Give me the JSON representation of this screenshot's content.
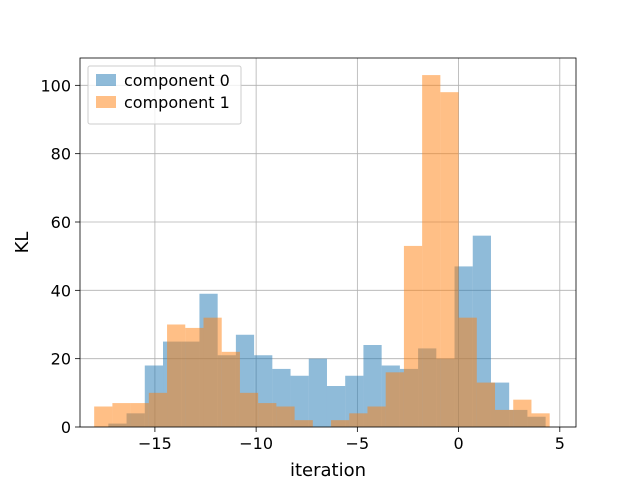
{
  "chart_data": {
    "type": "bar",
    "title": "",
    "xlabel": "iteration",
    "ylabel": "KL",
    "xlim": [
      -18.7,
      5.8
    ],
    "ylim": [
      0,
      108
    ],
    "xticks": [
      -15,
      -10,
      -5,
      0,
      5
    ],
    "xtick_labels": [
      "−15",
      "−10",
      "−5",
      "0",
      "5"
    ],
    "yticks": [
      0,
      20,
      40,
      60,
      80,
      100
    ],
    "ytick_labels": [
      "0",
      "20",
      "40",
      "60",
      "80",
      "100"
    ],
    "grid": true,
    "legend_position": "top-left",
    "series": [
      {
        "name": "component 0",
        "color": "#1f77b4",
        "alpha": 0.5,
        "bins": [
          {
            "x0": -17.3,
            "x1": -16.4,
            "value": 1
          },
          {
            "x0": -16.4,
            "x1": -15.5,
            "value": 4
          },
          {
            "x0": -15.5,
            "x1": -14.6,
            "value": 18
          },
          {
            "x0": -14.6,
            "x1": -13.7,
            "value": 25
          },
          {
            "x0": -13.7,
            "x1": -12.8,
            "value": 25
          },
          {
            "x0": -12.8,
            "x1": -11.9,
            "value": 39
          },
          {
            "x0": -11.9,
            "x1": -11.0,
            "value": 21
          },
          {
            "x0": -11.0,
            "x1": -10.1,
            "value": 27
          },
          {
            "x0": -10.1,
            "x1": -9.2,
            "value": 21
          },
          {
            "x0": -9.2,
            "x1": -8.3,
            "value": 17
          },
          {
            "x0": -8.3,
            "x1": -7.4,
            "value": 15
          },
          {
            "x0": -7.4,
            "x1": -6.5,
            "value": 20
          },
          {
            "x0": -6.5,
            "x1": -5.6,
            "value": 12
          },
          {
            "x0": -5.6,
            "x1": -4.7,
            "value": 15
          },
          {
            "x0": -4.7,
            "x1": -3.8,
            "value": 24
          },
          {
            "x0": -3.8,
            "x1": -2.9,
            "value": 18
          },
          {
            "x0": -2.9,
            "x1": -2.0,
            "value": 17
          },
          {
            "x0": -2.0,
            "x1": -1.1,
            "value": 23
          },
          {
            "x0": -1.1,
            "x1": -0.2,
            "value": 20
          },
          {
            "x0": -0.2,
            "x1": 0.7,
            "value": 47
          },
          {
            "x0": 0.7,
            "x1": 1.6,
            "value": 56
          },
          {
            "x0": 1.6,
            "x1": 2.5,
            "value": 13
          },
          {
            "x0": 2.5,
            "x1": 3.4,
            "value": 5
          },
          {
            "x0": 3.4,
            "x1": 4.3,
            "value": 3
          }
        ]
      },
      {
        "name": "component 1",
        "color": "#ff7f0e",
        "alpha": 0.5,
        "bins": [
          {
            "x0": -18.0,
            "x1": -17.1,
            "value": 6
          },
          {
            "x0": -17.1,
            "x1": -16.2,
            "value": 7
          },
          {
            "x0": -16.2,
            "x1": -15.3,
            "value": 7
          },
          {
            "x0": -15.3,
            "x1": -14.4,
            "value": 10
          },
          {
            "x0": -14.4,
            "x1": -13.5,
            "value": 30
          },
          {
            "x0": -13.5,
            "x1": -12.6,
            "value": 29
          },
          {
            "x0": -12.6,
            "x1": -11.7,
            "value": 32
          },
          {
            "x0": -11.7,
            "x1": -10.8,
            "value": 22
          },
          {
            "x0": -10.8,
            "x1": -9.9,
            "value": 10
          },
          {
            "x0": -9.9,
            "x1": -9.0,
            "value": 7
          },
          {
            "x0": -9.0,
            "x1": -8.1,
            "value": 6
          },
          {
            "x0": -8.1,
            "x1": -7.2,
            "value": 2
          },
          {
            "x0": -7.2,
            "x1": -6.3,
            "value": 0
          },
          {
            "x0": -6.3,
            "x1": -5.4,
            "value": 2
          },
          {
            "x0": -5.4,
            "x1": -4.5,
            "value": 4
          },
          {
            "x0": -4.5,
            "x1": -3.6,
            "value": 6
          },
          {
            "x0": -3.6,
            "x1": -2.7,
            "value": 16
          },
          {
            "x0": -2.7,
            "x1": -1.8,
            "value": 53
          },
          {
            "x0": -1.8,
            "x1": -0.9,
            "value": 103
          },
          {
            "x0": -0.9,
            "x1": 0.0,
            "value": 98
          },
          {
            "x0": 0.0,
            "x1": 0.9,
            "value": 32
          },
          {
            "x0": 0.9,
            "x1": 1.8,
            "value": 13
          },
          {
            "x0": 1.8,
            "x1": 2.7,
            "value": 5
          },
          {
            "x0": 2.7,
            "x1": 3.6,
            "value": 8
          },
          {
            "x0": 3.6,
            "x1": 4.5,
            "value": 4
          }
        ]
      }
    ]
  }
}
